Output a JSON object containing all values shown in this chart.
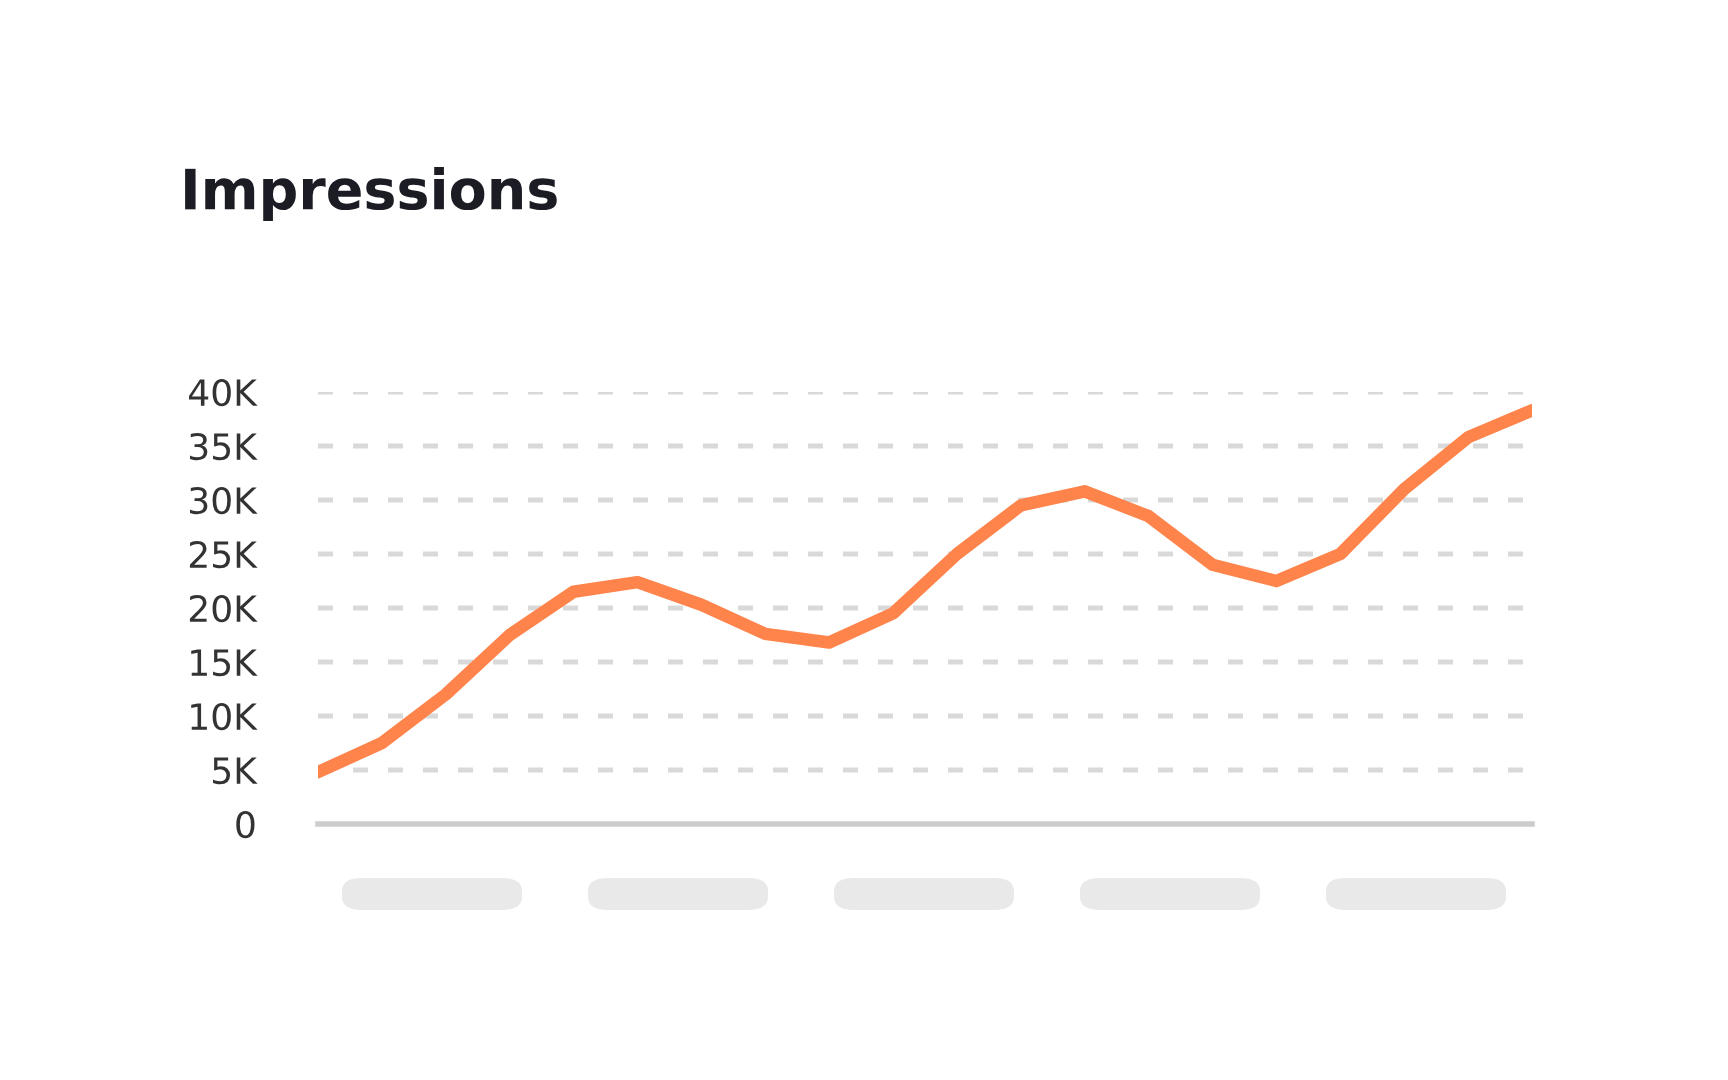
{
  "chart_data": {
    "type": "line",
    "title": "Impressions",
    "categories": [
      null,
      null,
      null,
      null,
      null,
      null,
      null,
      null,
      null,
      null,
      null,
      null,
      null,
      null,
      null,
      null,
      null,
      null,
      null,
      null
    ],
    "series": [
      {
        "color": "#ff844b",
        "values": [
          4.8,
          7.5,
          12,
          17.5,
          21.5,
          22.4,
          20.3,
          17.6,
          16.8,
          19.5,
          25,
          29.5,
          30.8,
          28.5,
          24,
          22.5,
          25,
          31,
          35.8,
          38.3
        ]
      }
    ],
    "ylim": [
      0,
      40
    ],
    "yticks": [
      0,
      {
        "value": 5,
        "label": "5K"
      },
      {
        "value": 10,
        "label": "10K"
      },
      {
        "value": 15,
        "label": "15K"
      },
      {
        "value": 20,
        "label": "20K"
      },
      {
        "value": 25,
        "label": "25K"
      },
      {
        "value": 30,
        "label": "30K"
      },
      {
        "value": 35,
        "label": "35K"
      },
      {
        "value": 40,
        "label": "40K"
      }
    ],
    "grid": "y",
    "marker": "none",
    "line_style": "solid",
    "legend": false
  }
}
